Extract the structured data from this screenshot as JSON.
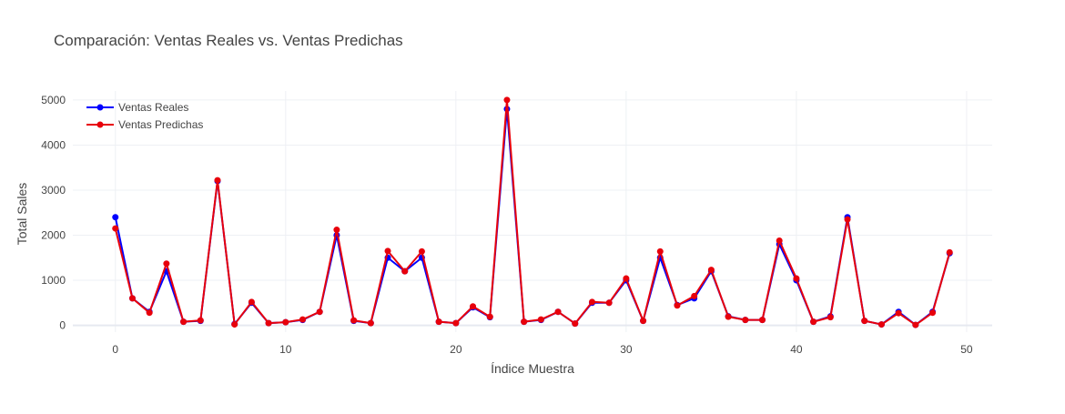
{
  "chart_data": {
    "type": "line",
    "title": "Comparación: Ventas Reales vs. Ventas Predichas",
    "xlabel": "Índice Muestra",
    "ylabel": "Total Sales",
    "xlim": [
      -2.5,
      51.5
    ],
    "ylim": [
      -150,
      5200
    ],
    "x_ticks": [
      0,
      10,
      20,
      30,
      40,
      50
    ],
    "y_ticks": [
      0,
      1000,
      2000,
      3000,
      4000,
      5000
    ],
    "grid": true,
    "legend_position": "top-left",
    "x": [
      0,
      1,
      2,
      3,
      4,
      5,
      6,
      7,
      8,
      9,
      10,
      11,
      12,
      13,
      14,
      15,
      16,
      17,
      18,
      19,
      20,
      21,
      22,
      23,
      24,
      25,
      26,
      27,
      28,
      29,
      30,
      31,
      32,
      33,
      34,
      35,
      36,
      37,
      38,
      39,
      40,
      41,
      42,
      43,
      44,
      45,
      46,
      47,
      48,
      49
    ],
    "series": [
      {
        "name": "Ventas Reales",
        "color": "#0000ff",
        "values": [
          2400,
          600,
          300,
          1200,
          80,
          100,
          3200,
          30,
          500,
          50,
          70,
          120,
          300,
          2000,
          100,
          50,
          1500,
          1200,
          1500,
          80,
          50,
          400,
          180,
          4800,
          80,
          120,
          300,
          40,
          500,
          500,
          1000,
          100,
          1500,
          450,
          600,
          1200,
          200,
          120,
          120,
          1800,
          1000,
          80,
          200,
          2400,
          100,
          20,
          300,
          10,
          300,
          1600
        ]
      },
      {
        "name": "Ventas Predichas",
        "color": "#e8000b",
        "values": [
          2150,
          600,
          280,
          1370,
          80,
          110,
          3220,
          20,
          520,
          50,
          70,
          130,
          300,
          2120,
          110,
          50,
          1650,
          1200,
          1640,
          80,
          50,
          420,
          190,
          5000,
          80,
          130,
          300,
          40,
          520,
          500,
          1040,
          100,
          1640,
          440,
          650,
          1230,
          190,
          120,
          120,
          1880,
          1040,
          80,
          180,
          2350,
          100,
          20,
          270,
          10,
          280,
          1620
        ]
      }
    ]
  }
}
